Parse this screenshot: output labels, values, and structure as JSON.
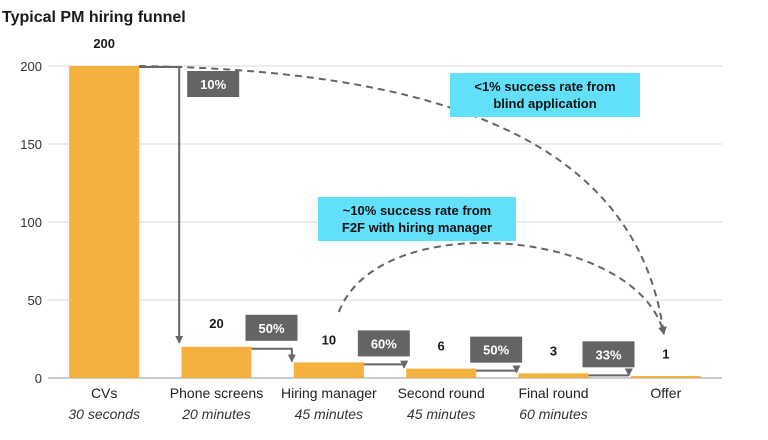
{
  "chart_data": {
    "type": "bar",
    "title": "Typical PM hiring funnel",
    "xlabel": "",
    "ylabel": "",
    "ylim": [
      0,
      200
    ],
    "yticks": [
      0,
      50,
      100,
      150,
      200
    ],
    "grid": true,
    "categories": [
      "CVs",
      "Phone screens",
      "Hiring manager",
      "Second round",
      "Final round",
      "Offer"
    ],
    "durations": [
      "30 seconds",
      "20 minutes",
      "45 minutes",
      "45 minutes",
      "60 minutes",
      ""
    ],
    "values": [
      200,
      20,
      10,
      6,
      3,
      1
    ],
    "value_labels": [
      "200",
      "20",
      "10",
      "6",
      "3",
      "1"
    ],
    "conversion_rates": [
      "10%",
      "50%",
      "60%",
      "50%",
      "33%"
    ],
    "annotations": [
      {
        "lines": [
          "<1% success rate from",
          "blind application"
        ]
      },
      {
        "lines": [
          "~10% success rate from",
          "F2F with hiring manager"
        ]
      }
    ],
    "colors": {
      "bar": "#f4b13e",
      "rate_box": "#646464",
      "annotation_box": "#62e0f9",
      "arrow": "#666666",
      "grid": "#d9d9d9"
    }
  }
}
